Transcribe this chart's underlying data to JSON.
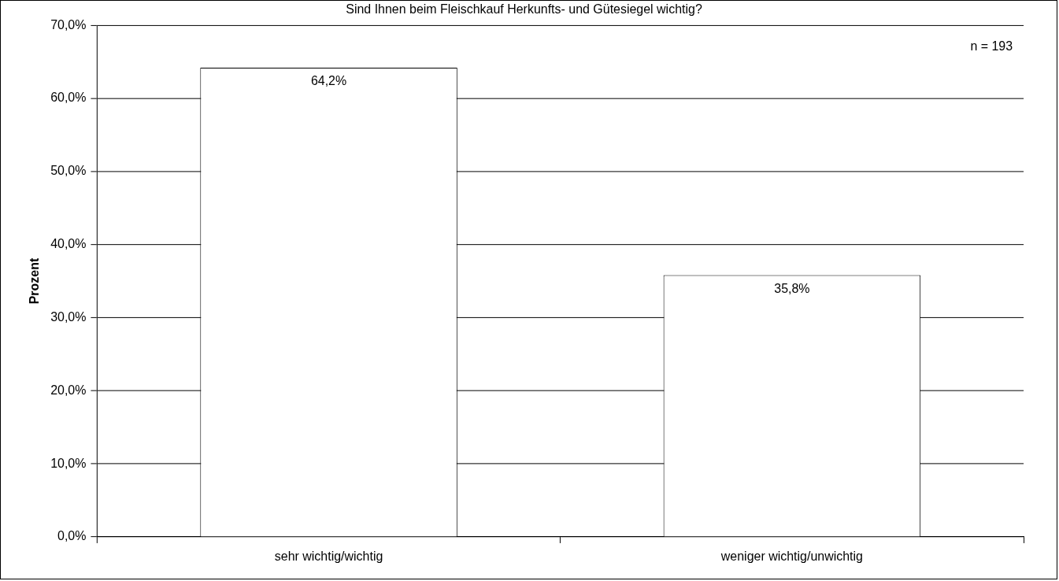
{
  "chart_data": {
    "type": "bar",
    "title": "Sind Ihnen beim Fleischkauf Herkunfts- und Gütesiegel wichtig?",
    "ylabel": "Prozent",
    "categories": [
      "sehr wichtig/wichtig",
      "weniger wichtig/unwichtig"
    ],
    "values": [
      64.2,
      35.8
    ],
    "value_labels": [
      "64,2%",
      "35,8%"
    ],
    "color": "#ffffff",
    "ylim": [
      0,
      70
    ],
    "yticks": [
      {
        "value": 0,
        "label": "0,0%"
      },
      {
        "value": 10,
        "label": "10,0%"
      },
      {
        "value": 20,
        "label": "20,0%"
      },
      {
        "value": 30,
        "label": "30,0%"
      },
      {
        "value": 40,
        "label": "40,0%"
      },
      {
        "value": 50,
        "label": "50,0%"
      },
      {
        "value": 60,
        "label": "60,0%"
      },
      {
        "value": 70,
        "label": "70,0%"
      }
    ],
    "grid": "y",
    "annotations": [
      "n = 193"
    ]
  }
}
